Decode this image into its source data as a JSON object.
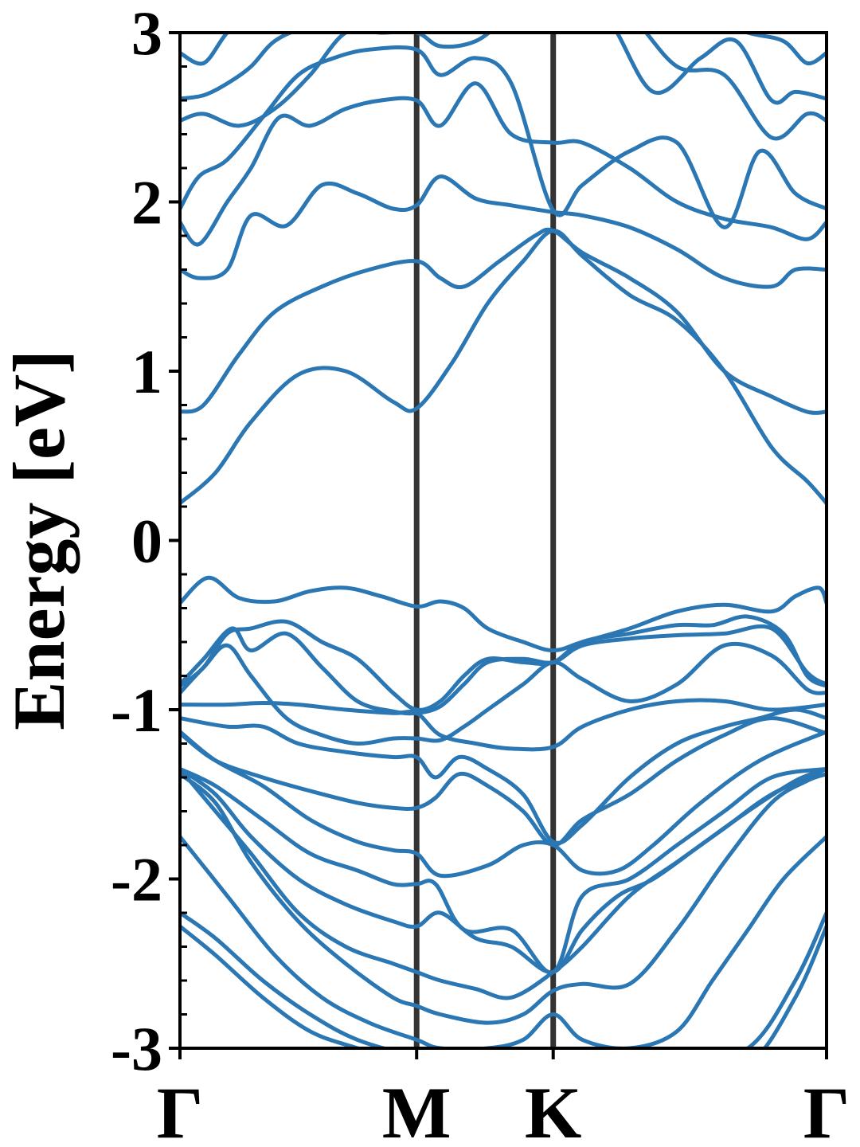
{
  "chart_data": {
    "type": "line",
    "title": "",
    "xlabel": "",
    "ylabel": "Energy [eV]",
    "ylim": [
      -3,
      3
    ],
    "yticks": [
      3,
      2,
      1,
      0,
      -1,
      -2,
      -3
    ],
    "ytick_labels": [
      "3",
      "2",
      "1",
      "0",
      "-1",
      "-2",
      "-3"
    ],
    "k_path": [
      {
        "label": "Γ",
        "x": 0.0
      },
      {
        "label": "M",
        "x": 1.0
      },
      {
        "label": "K",
        "x": 1.577
      },
      {
        "label": "Γ",
        "x": 2.732
      }
    ],
    "grid": false,
    "legend": "none",
    "colors": {
      "bands": "#2a77b4",
      "high_symmetry_lines": "#333333",
      "axes": "#000000"
    },
    "series": [
      {
        "x": [
          0.0,
          0.15,
          0.35,
          0.55,
          0.75,
          1.0,
          1.2,
          1.4,
          1.577,
          1.8,
          2.1,
          2.4,
          2.6,
          2.732
        ],
        "values": [
          -2.28,
          -2.45,
          -2.7,
          -2.9,
          -3.0,
          -3.1,
          -3.2,
          -3.2,
          -3.2,
          -3.2,
          -3.2,
          -3.1,
          -2.7,
          -2.28
        ]
      },
      {
        "x": [
          0.0,
          0.15,
          0.35,
          0.55,
          0.75,
          1.0,
          1.2,
          1.4,
          1.577,
          1.8,
          2.1,
          2.4,
          2.6,
          2.732
        ],
        "values": [
          -2.2,
          -2.35,
          -2.6,
          -2.8,
          -2.95,
          -3.05,
          -3.1,
          -3.1,
          -3.1,
          -3.1,
          -3.1,
          -3.0,
          -2.6,
          -2.2
        ]
      },
      {
        "x": [
          0.0,
          0.2,
          0.4,
          0.6,
          0.8,
          1.0,
          1.1,
          1.3,
          1.45,
          1.577,
          1.7,
          1.9,
          2.1,
          2.25,
          2.4,
          2.55,
          2.732
        ],
        "values": [
          -1.75,
          -2.1,
          -2.45,
          -2.7,
          -2.85,
          -2.95,
          -3.0,
          -3.0,
          -2.95,
          -2.8,
          -2.95,
          -3.0,
          -2.9,
          -2.6,
          -2.3,
          -2.0,
          -1.75
        ]
      },
      {
        "x": [
          0.0,
          0.15,
          0.3,
          0.5,
          0.7,
          0.9,
          1.0,
          1.1,
          1.3,
          1.45,
          1.577,
          1.7,
          1.9,
          2.1,
          2.3,
          2.5,
          2.65,
          2.732
        ],
        "values": [
          -1.38,
          -1.55,
          -1.9,
          -2.25,
          -2.5,
          -2.7,
          -2.75,
          -2.8,
          -2.85,
          -2.8,
          -2.66,
          -2.62,
          -2.62,
          -2.3,
          -1.9,
          -1.55,
          -1.42,
          -1.38
        ]
      },
      {
        "x": [
          0.0,
          0.15,
          0.3,
          0.5,
          0.7,
          0.9,
          1.0,
          1.1,
          1.25,
          1.4,
          1.577,
          1.7,
          1.9,
          2.1,
          2.3,
          2.5,
          2.732
        ],
        "values": [
          -1.35,
          -1.6,
          -1.85,
          -2.2,
          -2.4,
          -2.5,
          -2.55,
          -2.6,
          -2.65,
          -2.7,
          -2.55,
          -2.4,
          -2.1,
          -1.9,
          -1.7,
          -1.5,
          -1.35
        ]
      },
      {
        "x": [
          0.0,
          0.15,
          0.3,
          0.5,
          0.7,
          0.9,
          1.0,
          1.1,
          1.25,
          1.4,
          1.577,
          1.7,
          1.85,
          2.0,
          2.2,
          2.4,
          2.6,
          2.732
        ],
        "values": [
          -1.35,
          -1.5,
          -1.75,
          -2.0,
          -2.15,
          -2.25,
          -2.28,
          -2.2,
          -2.35,
          -2.4,
          -2.55,
          -2.3,
          -2.1,
          -2.0,
          -1.8,
          -1.6,
          -1.42,
          -1.35
        ]
      },
      {
        "x": [
          0.0,
          0.15,
          0.35,
          0.55,
          0.75,
          0.9,
          1.0,
          1.08,
          1.2,
          1.4,
          1.577,
          1.7,
          1.9,
          2.1,
          2.3,
          2.5,
          2.732
        ],
        "values": [
          -1.35,
          -1.45,
          -1.65,
          -1.85,
          -1.95,
          -2.03,
          -2.03,
          -2.03,
          -2.3,
          -2.3,
          -2.55,
          -2.1,
          -2.0,
          -1.8,
          -1.6,
          -1.4,
          -1.35
        ]
      },
      {
        "x": [
          0.0,
          0.15,
          0.35,
          0.55,
          0.75,
          0.9,
          1.0,
          1.1,
          1.3,
          1.45,
          1.577,
          1.7,
          1.85,
          2.0,
          2.2,
          2.45,
          2.732
        ],
        "values": [
          -1.13,
          -1.3,
          -1.45,
          -1.65,
          -1.78,
          -1.83,
          -1.85,
          -1.98,
          -1.92,
          -1.8,
          -1.8,
          -1.95,
          -1.95,
          -1.8,
          -1.55,
          -1.3,
          -1.13
        ]
      },
      {
        "x": [
          0.0,
          0.15,
          0.35,
          0.55,
          0.75,
          0.9,
          1.0,
          1.08,
          1.18,
          1.3,
          1.45,
          1.577,
          1.7,
          1.9,
          2.1,
          2.3,
          2.5,
          2.732
        ],
        "values": [
          -1.14,
          -1.3,
          -1.4,
          -1.48,
          -1.55,
          -1.58,
          -1.58,
          -1.52,
          -1.38,
          -1.45,
          -1.6,
          -1.8,
          -1.65,
          -1.5,
          -1.3,
          -1.15,
          -1.05,
          -1.14
        ]
      },
      {
        "x": [
          0.0,
          0.2,
          0.35,
          0.5,
          0.7,
          0.9,
          1.0,
          1.08,
          1.18,
          1.3,
          1.45,
          1.577,
          1.7,
          1.9,
          2.1,
          2.3,
          2.45,
          2.6,
          2.732
        ],
        "values": [
          -1.05,
          -1.1,
          -1.1,
          -1.2,
          -1.25,
          -1.28,
          -1.28,
          -1.4,
          -1.28,
          -1.35,
          -1.5,
          -1.78,
          -1.68,
          -1.4,
          -1.2,
          -1.1,
          -1.05,
          -1.0,
          -1.05
        ]
      },
      {
        "x": [
          0.0,
          0.2,
          0.35,
          0.5,
          0.7,
          0.9,
          1.0,
          1.1,
          1.25,
          1.4,
          1.577,
          1.7,
          1.9,
          2.1,
          2.3,
          2.5,
          2.732
        ],
        "values": [
          -0.97,
          -0.97,
          -0.96,
          -0.97,
          -1.0,
          -1.02,
          -1.02,
          -1.15,
          -1.2,
          -1.23,
          -1.22,
          -1.1,
          -1.0,
          -0.95,
          -0.95,
          -1.0,
          -0.97
        ]
      },
      {
        "x": [
          0.0,
          0.1,
          0.2,
          0.3,
          0.45,
          0.6,
          0.75,
          0.9,
          1.0,
          1.1,
          1.2,
          1.3,
          1.45,
          1.577,
          1.7,
          1.9,
          2.1,
          2.3,
          2.5,
          2.65,
          2.732
        ],
        "values": [
          -0.9,
          -0.75,
          -0.62,
          -0.8,
          -1.05,
          -1.15,
          -1.2,
          -1.17,
          -1.17,
          -1.18,
          -1.1,
          -1.0,
          -0.85,
          -0.72,
          -0.82,
          -0.95,
          -0.85,
          -0.62,
          -0.68,
          -0.88,
          -0.9
        ]
      },
      {
        "x": [
          0.0,
          0.1,
          0.22,
          0.3,
          0.45,
          0.6,
          0.75,
          0.9,
          1.0,
          1.1,
          1.2,
          1.3,
          1.45,
          1.577,
          1.7,
          1.9,
          2.1,
          2.3,
          2.5,
          2.65,
          2.732
        ],
        "values": [
          -0.85,
          -0.7,
          -0.52,
          -0.65,
          -0.55,
          -0.75,
          -0.95,
          -1.01,
          -1.02,
          -0.98,
          -0.85,
          -0.72,
          -0.7,
          -0.72,
          -0.62,
          -0.58,
          -0.56,
          -0.55,
          -0.52,
          -0.78,
          -0.85
        ]
      },
      {
        "x": [
          0.0,
          0.1,
          0.2,
          0.3,
          0.45,
          0.6,
          0.75,
          0.9,
          1.0,
          1.1,
          1.2,
          1.3,
          1.45,
          1.577,
          1.7,
          1.9,
          2.1,
          2.25,
          2.4,
          2.55,
          2.65,
          2.732
        ],
        "values": [
          -0.86,
          -0.75,
          -0.55,
          -0.52,
          -0.48,
          -0.6,
          -0.7,
          -0.9,
          -1.0,
          -0.95,
          -0.8,
          -0.7,
          -0.72,
          -0.72,
          -0.6,
          -0.55,
          -0.5,
          -0.5,
          -0.45,
          -0.55,
          -0.8,
          -0.86
        ]
      },
      {
        "x": [
          0.0,
          0.12,
          0.25,
          0.4,
          0.55,
          0.7,
          0.85,
          1.0,
          1.1,
          1.2,
          1.3,
          1.45,
          1.577,
          1.7,
          1.9,
          2.1,
          2.3,
          2.5,
          2.6,
          2.7,
          2.732
        ],
        "values": [
          -0.37,
          -0.22,
          -0.34,
          -0.36,
          -0.3,
          -0.28,
          -0.33,
          -0.39,
          -0.36,
          -0.4,
          -0.52,
          -0.6,
          -0.65,
          -0.6,
          -0.52,
          -0.42,
          -0.38,
          -0.42,
          -0.33,
          -0.28,
          -0.37
        ]
      },
      {
        "x": [
          0.0,
          0.15,
          0.3,
          0.5,
          0.7,
          0.9,
          1.0,
          1.15,
          1.3,
          1.45,
          1.577,
          1.7,
          1.9,
          2.1,
          2.3,
          2.5,
          2.65,
          2.732
        ],
        "values": [
          0.22,
          0.4,
          0.7,
          0.98,
          1.0,
          0.82,
          0.78,
          1.05,
          1.4,
          1.65,
          1.83,
          1.68,
          1.45,
          1.3,
          1.0,
          0.55,
          0.35,
          0.22
        ]
      },
      {
        "x": [
          0.0,
          0.1,
          0.25,
          0.4,
          0.6,
          0.8,
          1.0,
          1.1,
          1.2,
          1.35,
          1.5,
          1.577,
          1.7,
          1.9,
          2.1,
          2.3,
          2.5,
          2.65,
          2.732
        ],
        "values": [
          0.76,
          0.8,
          1.1,
          1.35,
          1.5,
          1.6,
          1.65,
          1.55,
          1.5,
          1.65,
          1.8,
          1.83,
          1.7,
          1.55,
          1.35,
          1.0,
          0.85,
          0.76,
          0.76
        ]
      },
      {
        "x": [
          0.0,
          0.08,
          0.2,
          0.3,
          0.45,
          0.6,
          0.75,
          0.9,
          1.0,
          1.1,
          1.25,
          1.4,
          1.577,
          1.7,
          1.9,
          2.1,
          2.3,
          2.5,
          2.6,
          2.732
        ],
        "values": [
          1.6,
          1.55,
          1.6,
          1.92,
          1.86,
          2.1,
          2.05,
          1.96,
          1.98,
          2.15,
          2.02,
          1.98,
          1.94,
          1.92,
          1.85,
          1.72,
          1.55,
          1.5,
          1.6,
          1.6
        ]
      },
      {
        "x": [
          0.0,
          0.08,
          0.2,
          0.3,
          0.42,
          0.55,
          0.7,
          0.85,
          1.0,
          1.1,
          1.25,
          1.4,
          1.577,
          1.7,
          1.9,
          2.1,
          2.3,
          2.5,
          2.65,
          2.732
        ],
        "values": [
          1.88,
          1.75,
          2.0,
          2.2,
          2.5,
          2.45,
          2.55,
          2.6,
          2.6,
          2.45,
          2.7,
          2.4,
          2.35,
          2.35,
          2.2,
          2.0,
          1.9,
          1.85,
          1.78,
          1.88
        ]
      },
      {
        "x": [
          0.0,
          0.08,
          0.2,
          0.35,
          0.5,
          0.65,
          0.8,
          1.0,
          1.1,
          1.25,
          1.4,
          1.577,
          1.7,
          1.9,
          2.1,
          2.3,
          2.45,
          2.6,
          2.732
        ],
        "values": [
          1.96,
          2.15,
          2.25,
          2.5,
          2.75,
          2.85,
          2.9,
          2.9,
          2.75,
          2.85,
          2.7,
          1.95,
          2.1,
          2.3,
          2.35,
          1.85,
          2.3,
          2.05,
          1.96
        ]
      },
      {
        "x": [
          0.0,
          0.1,
          0.25,
          0.4,
          0.55,
          0.7,
          0.85,
          1.0,
          1.1,
          1.25,
          1.4,
          1.577,
          1.7,
          1.9,
          2.1,
          2.3,
          2.5,
          2.65,
          2.732
        ],
        "values": [
          2.48,
          2.52,
          2.45,
          2.55,
          2.75,
          3.0,
          3.0,
          3.0,
          2.92,
          2.95,
          3.1,
          3.2,
          3.2,
          3.1,
          2.8,
          2.75,
          2.38,
          2.52,
          2.48
        ]
      },
      {
        "x": [
          0.0,
          0.1,
          0.2,
          0.3,
          0.4,
          0.55,
          0.8,
          1.0,
          1.3,
          1.577,
          1.8,
          2.0,
          2.2,
          2.35,
          2.5,
          2.6,
          2.732
        ],
        "values": [
          2.61,
          2.63,
          2.7,
          2.8,
          2.95,
          3.05,
          3.2,
          3.3,
          3.3,
          3.3,
          3.1,
          2.65,
          2.85,
          2.95,
          2.6,
          2.65,
          2.61
        ]
      },
      {
        "x": [
          0.0,
          0.1,
          0.2,
          0.3,
          0.4,
          0.6,
          0.8,
          1.0,
          1.3,
          1.577,
          1.8,
          2.0,
          2.2,
          2.4,
          2.55,
          2.65,
          2.732
        ],
        "values": [
          2.88,
          2.82,
          3.0,
          3.1,
          3.2,
          3.3,
          3.4,
          3.4,
          3.4,
          3.4,
          3.3,
          3.2,
          3.1,
          3.0,
          2.95,
          2.82,
          2.88
        ]
      }
    ]
  }
}
